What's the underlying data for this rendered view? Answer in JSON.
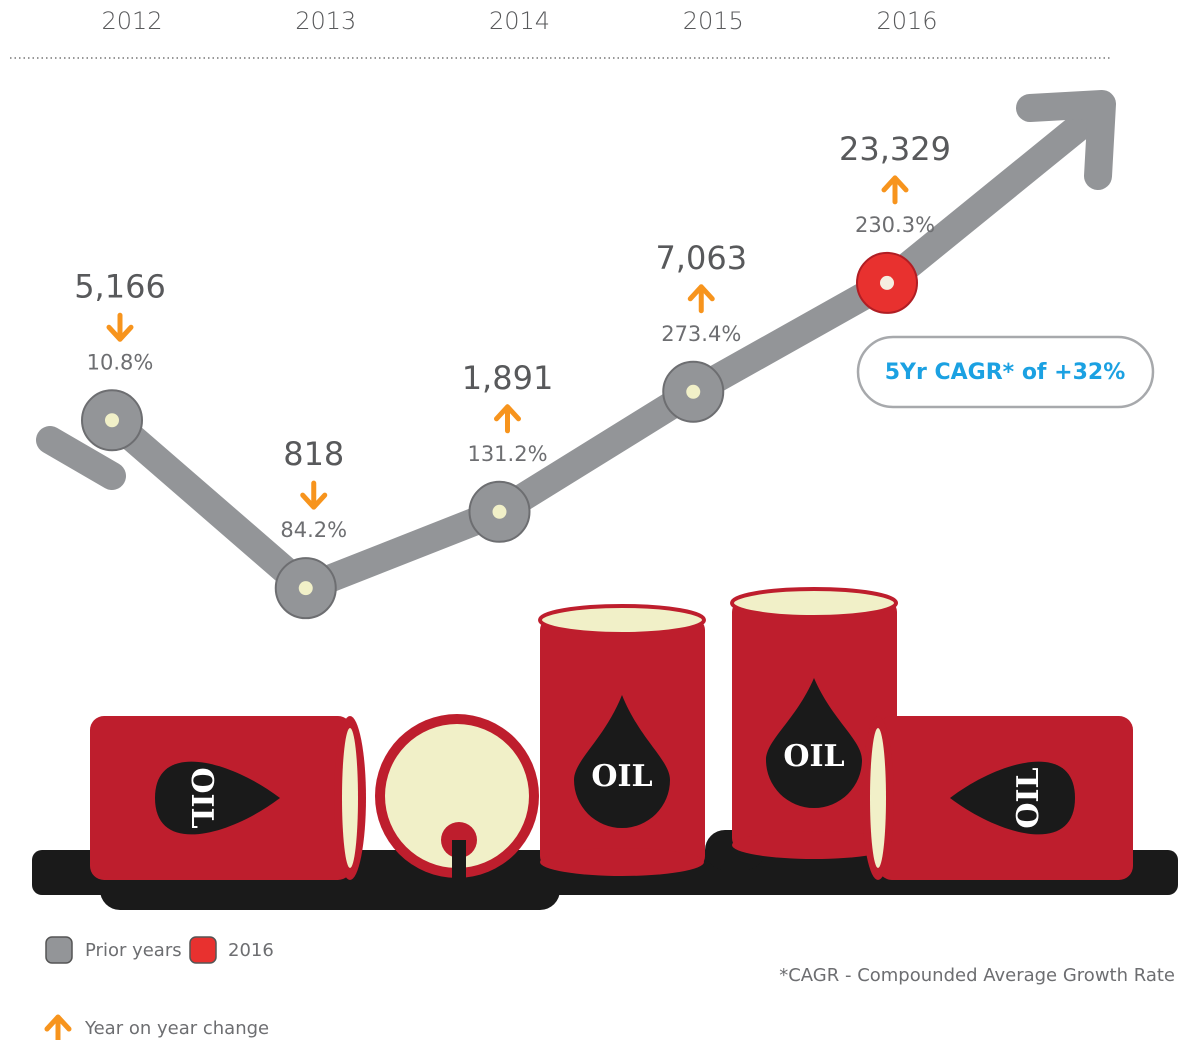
{
  "chart_data": {
    "type": "line",
    "categories": [
      "2012",
      "2013",
      "2014",
      "2015",
      "2016"
    ],
    "series": [
      {
        "name": "Prior years",
        "color": "#939598",
        "values": [
          5166,
          818,
          1891,
          7063,
          23329
        ],
        "value_labels": [
          "5,166",
          "818",
          "1,891",
          "7,063",
          "23,329"
        ]
      }
    ],
    "highlight": {
      "name": "2016",
      "color": "#e8312f"
    },
    "log_scale": true,
    "ylim": [
      500,
      30000
    ],
    "changes": {
      "name": "Year on year change",
      "color": "#f7941d",
      "values": [
        -10.8,
        -84.2,
        131.2,
        273.4,
        230.3
      ],
      "value_labels": [
        "10.8%",
        "84.2%",
        "131.2%",
        "273.4%",
        "230.3%"
      ]
    },
    "annotation": "5Yr CAGR* of +32%",
    "footnote": "*CAGR - Compounded Average Growth Rate",
    "barrel_label": "OIL"
  }
}
